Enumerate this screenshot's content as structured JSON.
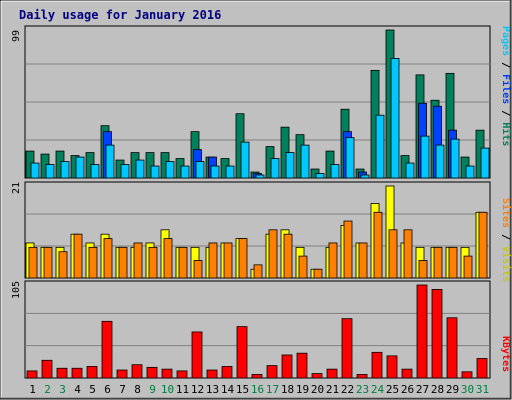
{
  "title": "Daily usage for January 2016",
  "colors": {
    "frame": "#c0c0c0",
    "panel": "#c0c0c0",
    "grid": "#808080",
    "title": "#000080",
    "hits": "#00805c",
    "files": "#0040ff",
    "pages": "#00c8ff",
    "visits": "#ffff00",
    "sites": "#ff8000",
    "kbytes": "#ff0000",
    "weekday_label": "#000000",
    "weekend_label": "#008040"
  },
  "legend": {
    "top": [
      {
        "text": "Pages",
        "color": "#00c8ff"
      },
      {
        "text": " / ",
        "color": "#000000"
      },
      {
        "text": "Files",
        "color": "#0040ff"
      },
      {
        "text": " / ",
        "color": "#000000"
      },
      {
        "text": "Hits",
        "color": "#00805c"
      }
    ],
    "middle": [
      {
        "text": "Sites",
        "color": "#ff8000"
      },
      {
        "text": " / ",
        "color": "#000000"
      },
      {
        "text": "Visits",
        "color": "#c8c800"
      }
    ],
    "bottom": [
      {
        "text": "KBytes",
        "color": "#ff0000"
      }
    ]
  },
  "chart_data": [
    {
      "type": "bar",
      "panel": "top",
      "ymax_label": "99",
      "ylim": [
        0,
        99
      ],
      "categories": [
        "1",
        "2",
        "3",
        "4",
        "5",
        "6",
        "7",
        "8",
        "9",
        "10",
        "11",
        "12",
        "13",
        "14",
        "15",
        "16",
        "17",
        "18",
        "19",
        "20",
        "21",
        "22",
        "23",
        "24",
        "25",
        "26",
        "27",
        "28",
        "29",
        "30",
        "31"
      ],
      "weekend_days": [
        "2",
        "3",
        "9",
        "10",
        "16",
        "17",
        "23",
        "24",
        "30",
        "31"
      ],
      "series": [
        {
          "name": "Hits",
          "values": [
            18,
            16,
            18,
            15,
            17,
            35,
            12,
            17,
            17,
            17,
            13,
            31,
            14,
            13,
            43,
            4,
            21,
            34,
            29,
            6,
            18,
            46,
            6,
            72,
            99,
            15,
            69,
            52,
            70,
            14,
            32
          ]
        },
        {
          "name": "Files",
          "values": [
            0,
            0,
            0,
            0,
            0,
            31,
            0,
            0,
            0,
            0,
            0,
            19,
            14,
            0,
            0,
            3,
            0,
            0,
            0,
            0,
            0,
            31,
            4,
            0,
            0,
            0,
            50,
            48,
            32,
            0,
            0
          ]
        },
        {
          "name": "Pages",
          "values": [
            10,
            9,
            11,
            14,
            9,
            22,
            9,
            12,
            8,
            11,
            8,
            11,
            8,
            8,
            24,
            2,
            13,
            17,
            22,
            3,
            9,
            27,
            2,
            42,
            80,
            10,
            28,
            22,
            26,
            8,
            20
          ]
        }
      ]
    },
    {
      "type": "bar",
      "panel": "middle",
      "ymax_label": "21",
      "ylim": [
        0,
        21
      ],
      "categories": [
        "1",
        "2",
        "3",
        "4",
        "5",
        "6",
        "7",
        "8",
        "9",
        "10",
        "11",
        "12",
        "13",
        "14",
        "15",
        "16",
        "17",
        "18",
        "19",
        "20",
        "21",
        "22",
        "23",
        "24",
        "25",
        "26",
        "27",
        "28",
        "29",
        "30",
        "31"
      ],
      "series": [
        {
          "name": "Visits",
          "values": [
            8,
            7,
            7,
            10,
            8,
            10,
            7,
            7,
            8,
            11,
            7,
            7,
            7,
            8,
            9,
            2,
            10,
            11,
            7,
            2,
            7,
            12,
            8,
            17,
            21,
            8,
            7,
            7,
            7,
            7,
            15
          ]
        },
        {
          "name": "Sites",
          "values": [
            7,
            7,
            6,
            10,
            7,
            9,
            7,
            8,
            7,
            9,
            7,
            4,
            8,
            8,
            9,
            3,
            11,
            10,
            5,
            2,
            8,
            13,
            8,
            15,
            11,
            11,
            4,
            7,
            7,
            5,
            15
          ]
        }
      ]
    },
    {
      "type": "bar",
      "panel": "bottom",
      "ymax_label": "105",
      "ylim": [
        0,
        105
      ],
      "categories": [
        "1",
        "2",
        "3",
        "4",
        "5",
        "6",
        "7",
        "8",
        "9",
        "10",
        "11",
        "12",
        "13",
        "14",
        "15",
        "16",
        "17",
        "18",
        "19",
        "20",
        "21",
        "22",
        "23",
        "24",
        "25",
        "26",
        "27",
        "28",
        "29",
        "30",
        "31"
      ],
      "series": [
        {
          "name": "KBytes",
          "values": [
            8,
            20,
            11,
            11,
            13,
            64,
            9,
            15,
            12,
            10,
            8,
            52,
            9,
            13,
            58,
            4,
            14,
            26,
            28,
            5,
            10,
            67,
            4,
            29,
            25,
            10,
            105,
            100,
            68,
            7,
            22
          ]
        }
      ]
    }
  ]
}
